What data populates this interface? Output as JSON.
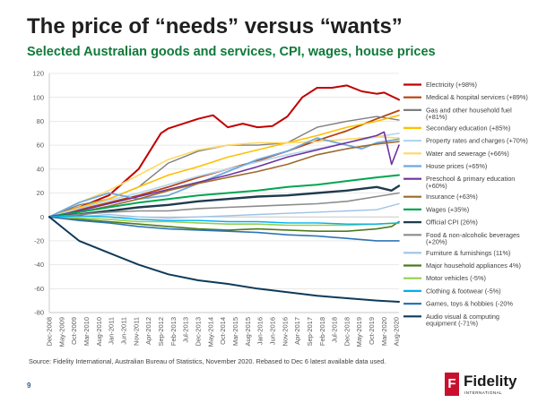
{
  "slide": {
    "title": "The price of “needs” versus “wants”",
    "subtitle": "Selected Australian goods and services, CPI, wages, house prices",
    "source": "Source: Fidelity International, Australian Bureau of Statistics, November 2020. Rebased to Dec",
    "source_tail": "6 latest available data used.",
    "page_number": "9",
    "logo": {
      "badge": "F",
      "name": "Fidelity",
      "tagline": "INTERNATIONAL",
      "color": "#c8102e"
    }
  },
  "chart_data": {
    "type": "line",
    "title": "",
    "xlabel": "",
    "ylabel": "",
    "ylim": [
      -80,
      120
    ],
    "yticks": [
      -80,
      -60,
      -40,
      -20,
      0,
      20,
      40,
      60,
      80,
      100,
      120
    ],
    "grid": true,
    "legend_position": "right",
    "x_start": "Dec-2008",
    "x_end": "Sep-2020",
    "x_tick_labels": [
      "Dec-2008",
      "May-2009",
      "Oct-2009",
      "Mar-2010",
      "Aug-2010",
      "Jan-2011",
      "Jun-2011",
      "Nov-2011",
      "Apr-2012",
      "Sep-2012",
      "Feb-2013",
      "Jul-2013",
      "Dec-2013",
      "May-2014",
      "Oct-2014",
      "Mar-2015",
      "Aug-2015",
      "Jan-2016",
      "Jun-2016",
      "Nov-2016",
      "Apr-2017",
      "Sep-2017",
      "Feb-2018",
      "Jul-2018",
      "Dec-2018",
      "May-2019",
      "Oct-2019",
      "Mar-2020",
      "Aug-2020"
    ],
    "series": [
      {
        "name": "Electricity (+98%)",
        "color": "#c00000",
        "width": 2.0,
        "points": [
          [
            "Dec-2008",
            0
          ],
          [
            "Dec-2009",
            8
          ],
          [
            "Dec-2010",
            18
          ],
          [
            "Dec-2011",
            40
          ],
          [
            "Sep-2012",
            70
          ],
          [
            "Dec-2012",
            74
          ],
          [
            "Dec-2013",
            82
          ],
          [
            "Jun-2014",
            85
          ],
          [
            "Dec-2014",
            75
          ],
          [
            "Jun-2015",
            78
          ],
          [
            "Dec-2015",
            75
          ],
          [
            "Jun-2016",
            76
          ],
          [
            "Dec-2016",
            84
          ],
          [
            "Jun-2017",
            100
          ],
          [
            "Dec-2017",
            108
          ],
          [
            "Jun-2018",
            108
          ],
          [
            "Dec-2018",
            110
          ],
          [
            "Jun-2019",
            105
          ],
          [
            "Dec-2019",
            103
          ],
          [
            "Mar-2020",
            104
          ],
          [
            "Sep-2020",
            98
          ]
        ]
      },
      {
        "name": "Medical & hospital services (+89%)",
        "color": "#b7410e",
        "width": 1.8,
        "points": [
          [
            "Dec-2008",
            0
          ],
          [
            "Dec-2009",
            6
          ],
          [
            "Dec-2010",
            12
          ],
          [
            "Dec-2011",
            18
          ],
          [
            "Dec-2012",
            25
          ],
          [
            "Dec-2013",
            33
          ],
          [
            "Dec-2014",
            40
          ],
          [
            "Dec-2015",
            47
          ],
          [
            "Dec-2016",
            55
          ],
          [
            "Dec-2017",
            64
          ],
          [
            "Dec-2018",
            72
          ],
          [
            "Dec-2019",
            82
          ],
          [
            "Sep-2020",
            89
          ]
        ]
      },
      {
        "name": "Gas and other household fuel (+81%)",
        "color": "#7f7f7f",
        "width": 1.4,
        "points": [
          [
            "Dec-2008",
            0
          ],
          [
            "Dec-2009",
            10
          ],
          [
            "Dec-2010",
            15
          ],
          [
            "Dec-2011",
            25
          ],
          [
            "Dec-2012",
            45
          ],
          [
            "Dec-2013",
            55
          ],
          [
            "Dec-2014",
            60
          ],
          [
            "Dec-2015",
            60
          ],
          [
            "Dec-2016",
            62
          ],
          [
            "Dec-2017",
            75
          ],
          [
            "Dec-2018",
            80
          ],
          [
            "Dec-2019",
            84
          ],
          [
            "Sep-2020",
            81
          ]
        ]
      },
      {
        "name": "Secondary education (+85%)",
        "color": "#ffc000",
        "width": 1.6,
        "points": [
          [
            "Dec-2008",
            0
          ],
          [
            "Dec-2009",
            8
          ],
          [
            "Dec-2010",
            15
          ],
          [
            "Dec-2011",
            25
          ],
          [
            "Dec-2012",
            35
          ],
          [
            "Dec-2013",
            42
          ],
          [
            "Dec-2014",
            50
          ],
          [
            "Dec-2015",
            56
          ],
          [
            "Dec-2016",
            62
          ],
          [
            "Dec-2017",
            68
          ],
          [
            "Dec-2018",
            75
          ],
          [
            "Dec-2019",
            80
          ],
          [
            "Sep-2020",
            85
          ]
        ]
      },
      {
        "name": "Property rates and charges (+70%)",
        "color": "#b4d6ee",
        "width": 1.6,
        "points": [
          [
            "Dec-2008",
            0
          ],
          [
            "Dec-2009",
            7
          ],
          [
            "Dec-2010",
            14
          ],
          [
            "Dec-2011",
            20
          ],
          [
            "Dec-2012",
            27
          ],
          [
            "Dec-2013",
            34
          ],
          [
            "Dec-2014",
            40
          ],
          [
            "Dec-2015",
            46
          ],
          [
            "Dec-2016",
            52
          ],
          [
            "Dec-2017",
            57
          ],
          [
            "Dec-2018",
            62
          ],
          [
            "Dec-2019",
            67
          ],
          [
            "Sep-2020",
            70
          ]
        ]
      },
      {
        "name": "Water and sewerage (+66%)",
        "color": "#ffd966",
        "width": 1.6,
        "points": [
          [
            "Dec-2008",
            0
          ],
          [
            "Dec-2009",
            12
          ],
          [
            "Dec-2010",
            22
          ],
          [
            "Dec-2011",
            35
          ],
          [
            "Dec-2012",
            48
          ],
          [
            "Dec-2013",
            56
          ],
          [
            "Dec-2014",
            60
          ],
          [
            "Dec-2015",
            62
          ],
          [
            "Dec-2016",
            62
          ],
          [
            "Dec-2017",
            63
          ],
          [
            "Dec-2018",
            65
          ],
          [
            "Dec-2019",
            67
          ],
          [
            "Sep-2020",
            66
          ]
        ]
      },
      {
        "name": "House prices (+65%)",
        "color": "#6fa8dc",
        "width": 1.8,
        "points": [
          [
            "Dec-2008",
            0
          ],
          [
            "Dec-2009",
            12
          ],
          [
            "Dec-2010",
            20
          ],
          [
            "Dec-2011",
            15
          ],
          [
            "Dec-2012",
            18
          ],
          [
            "Dec-2013",
            28
          ],
          [
            "Dec-2014",
            38
          ],
          [
            "Dec-2015",
            48
          ],
          [
            "Dec-2016",
            55
          ],
          [
            "Dec-2017",
            66
          ],
          [
            "Dec-2018",
            60
          ],
          [
            "Jun-2019",
            57
          ],
          [
            "Dec-2019",
            62
          ],
          [
            "Sep-2020",
            65
          ]
        ]
      },
      {
        "name": "Preschool & primary education (+60%)",
        "color": "#7030a0",
        "width": 1.6,
        "points": [
          [
            "Dec-2008",
            0
          ],
          [
            "Dec-2009",
            5
          ],
          [
            "Dec-2010",
            11
          ],
          [
            "Dec-2011",
            17
          ],
          [
            "Dec-2012",
            23
          ],
          [
            "Dec-2013",
            29
          ],
          [
            "Dec-2014",
            35
          ],
          [
            "Dec-2015",
            42
          ],
          [
            "Dec-2016",
            50
          ],
          [
            "Dec-2017",
            56
          ],
          [
            "Dec-2018",
            62
          ],
          [
            "Dec-2019",
            68
          ],
          [
            "Mar-2020",
            71
          ],
          [
            "Jun-2020",
            44
          ],
          [
            "Sep-2020",
            60
          ]
        ]
      },
      {
        "name": "Insurance (+63%)",
        "color": "#9c6a2b",
        "width": 1.6,
        "points": [
          [
            "Dec-2008",
            0
          ],
          [
            "Dec-2009",
            4
          ],
          [
            "Dec-2010",
            9
          ],
          [
            "Dec-2011",
            15
          ],
          [
            "Dec-2012",
            22
          ],
          [
            "Dec-2013",
            28
          ],
          [
            "Dec-2014",
            33
          ],
          [
            "Dec-2015",
            38
          ],
          [
            "Dec-2016",
            44
          ],
          [
            "Dec-2017",
            52
          ],
          [
            "Dec-2018",
            57
          ],
          [
            "Dec-2019",
            61
          ],
          [
            "Sep-2020",
            63
          ]
        ]
      },
      {
        "name": "Wages (+35%)",
        "color": "#00a651",
        "width": 2.0,
        "points": [
          [
            "Dec-2008",
            0
          ],
          [
            "Dec-2009",
            4
          ],
          [
            "Dec-2010",
            8
          ],
          [
            "Dec-2011",
            12
          ],
          [
            "Dec-2012",
            15
          ],
          [
            "Dec-2013",
            18
          ],
          [
            "Dec-2014",
            20
          ],
          [
            "Dec-2015",
            22
          ],
          [
            "Dec-2016",
            25
          ],
          [
            "Dec-2017",
            27
          ],
          [
            "Dec-2018",
            30
          ],
          [
            "Dec-2019",
            33
          ],
          [
            "Sep-2020",
            35
          ]
        ]
      },
      {
        "name": "Official CPI (26%)",
        "color": "#1f3b4d",
        "width": 2.4,
        "points": [
          [
            "Dec-2008",
            0
          ],
          [
            "Dec-2009",
            2
          ],
          [
            "Dec-2010",
            5
          ],
          [
            "Dec-2011",
            8
          ],
          [
            "Dec-2012",
            10
          ],
          [
            "Dec-2013",
            13
          ],
          [
            "Dec-2014",
            15
          ],
          [
            "Dec-2015",
            17
          ],
          [
            "Dec-2016",
            18
          ],
          [
            "Dec-2017",
            20
          ],
          [
            "Dec-2018",
            22
          ],
          [
            "Dec-2019",
            25
          ],
          [
            "Jun-2020",
            22
          ],
          [
            "Sep-2020",
            26
          ]
        ]
      },
      {
        "name": "Food & non-alcoholic beverages (+20%)",
        "color": "#8c8c8c",
        "width": 1.6,
        "points": [
          [
            "Dec-2008",
            0
          ],
          [
            "Dec-2009",
            2
          ],
          [
            "Dec-2010",
            4
          ],
          [
            "Dec-2011",
            5
          ],
          [
            "Dec-2012",
            5
          ],
          [
            "Dec-2013",
            7
          ],
          [
            "Dec-2014",
            8
          ],
          [
            "Dec-2015",
            9
          ],
          [
            "Dec-2016",
            10
          ],
          [
            "Dec-2017",
            11
          ],
          [
            "Dec-2018",
            13
          ],
          [
            "Dec-2019",
            17
          ],
          [
            "Sep-2020",
            20
          ]
        ]
      },
      {
        "name": "Furniture & furnishings (11%)",
        "color": "#9dc3e6",
        "width": 1.4,
        "points": [
          [
            "Dec-2008",
            0
          ],
          [
            "Dec-2009",
            0
          ],
          [
            "Dec-2010",
            2
          ],
          [
            "Dec-2011",
            0
          ],
          [
            "Dec-2012",
            -1
          ],
          [
            "Dec-2013",
            0
          ],
          [
            "Dec-2014",
            1
          ],
          [
            "Dec-2015",
            2
          ],
          [
            "Dec-2016",
            3
          ],
          [
            "Dec-2017",
            4
          ],
          [
            "Dec-2018",
            5
          ],
          [
            "Dec-2019",
            6
          ],
          [
            "Sep-2020",
            11
          ]
        ]
      },
      {
        "name": "Major household appliances 4%)",
        "color": "#4e7a1d",
        "width": 1.6,
        "points": [
          [
            "Dec-2008",
            0
          ],
          [
            "Dec-2009",
            -2
          ],
          [
            "Dec-2010",
            -4
          ],
          [
            "Dec-2011",
            -6
          ],
          [
            "Dec-2012",
            -8
          ],
          [
            "Dec-2013",
            -10
          ],
          [
            "Dec-2014",
            -11
          ],
          [
            "Dec-2015",
            -10
          ],
          [
            "Dec-2016",
            -11
          ],
          [
            "Dec-2017",
            -12
          ],
          [
            "Dec-2018",
            -12
          ],
          [
            "Dec-2019",
            -10
          ],
          [
            "Jun-2020",
            -8
          ],
          [
            "Sep-2020",
            -4
          ]
        ]
      },
      {
        "name": "Motor vehicles (-5%)",
        "color": "#92d050",
        "width": 1.6,
        "points": [
          [
            "Dec-2008",
            0
          ],
          [
            "Dec-2009",
            -1
          ],
          [
            "Dec-2010",
            -2
          ],
          [
            "Dec-2011",
            -4
          ],
          [
            "Dec-2012",
            -4
          ],
          [
            "Dec-2013",
            -5
          ],
          [
            "Dec-2014",
            -6
          ],
          [
            "Dec-2015",
            -6
          ],
          [
            "Dec-2016",
            -7
          ],
          [
            "Dec-2017",
            -7
          ],
          [
            "Dec-2018",
            -7
          ],
          [
            "Dec-2019",
            -6
          ],
          [
            "Sep-2020",
            -5
          ]
        ]
      },
      {
        "name": "Clothing & footwear (-5%)",
        "color": "#00b0f0",
        "width": 1.4,
        "points": [
          [
            "Dec-2008",
            0
          ],
          [
            "Dec-2009",
            1
          ],
          [
            "Dec-2010",
            0
          ],
          [
            "Dec-2011",
            -2
          ],
          [
            "Dec-2012",
            -3
          ],
          [
            "Dec-2013",
            -3
          ],
          [
            "Dec-2014",
            -4
          ],
          [
            "Dec-2015",
            -4
          ],
          [
            "Dec-2016",
            -5
          ],
          [
            "Dec-2017",
            -5
          ],
          [
            "Dec-2018",
            -6
          ],
          [
            "Dec-2019",
            -6
          ],
          [
            "Sep-2020",
            -5
          ]
        ]
      },
      {
        "name": "Games, toys & hobbies (-20%",
        "color": "#2e75b6",
        "width": 1.6,
        "points": [
          [
            "Dec-2008",
            0
          ],
          [
            "Dec-2009",
            -3
          ],
          [
            "Dec-2010",
            -5
          ],
          [
            "Dec-2011",
            -8
          ],
          [
            "Dec-2012",
            -10
          ],
          [
            "Dec-2013",
            -11
          ],
          [
            "Dec-2014",
            -12
          ],
          [
            "Dec-2015",
            -13
          ],
          [
            "Dec-2016",
            -15
          ],
          [
            "Dec-2017",
            -16
          ],
          [
            "Dec-2018",
            -18
          ],
          [
            "Dec-2019",
            -20
          ],
          [
            "Sep-2020",
            -20
          ]
        ]
      },
      {
        "name": "Audio visual & computing equipment (-71%)",
        "color": "#0e3a5a",
        "width": 2.0,
        "points": [
          [
            "Dec-2008",
            0
          ],
          [
            "Jun-2009",
            -10
          ],
          [
            "Dec-2009",
            -20
          ],
          [
            "Dec-2010",
            -30
          ],
          [
            "Dec-2011",
            -40
          ],
          [
            "Dec-2012",
            -48
          ],
          [
            "Dec-2013",
            -53
          ],
          [
            "Dec-2014",
            -56
          ],
          [
            "Dec-2015",
            -60
          ],
          [
            "Dec-2016",
            -63
          ],
          [
            "Dec-2017",
            -66
          ],
          [
            "Dec-2018",
            -68
          ],
          [
            "Dec-2019",
            -70
          ],
          [
            "Sep-2020",
            -71
          ]
        ]
      }
    ]
  }
}
